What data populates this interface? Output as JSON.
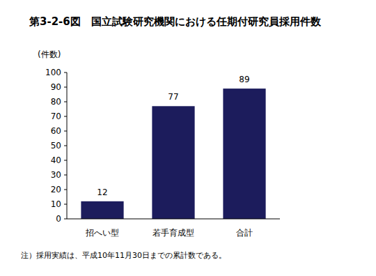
{
  "chart_data": {
    "type": "bar",
    "title": "第3-2-6図　国立試験研究機関における任期付研究員採用件数",
    "y_label": "(件数)",
    "categories": [
      "招へい型",
      "若手育成型",
      "合計"
    ],
    "values": [
      12,
      77,
      89
    ],
    "color": "#1c1c5c",
    "ylim": [
      0,
      100
    ],
    "yticks": [
      0,
      10,
      20,
      30,
      40,
      50,
      60,
      70,
      80,
      90,
      100
    ],
    "grid": false,
    "data_labels": true,
    "annotations": [
      "注）採用実績は、平成10年11月30日までの累計数である。"
    ]
  }
}
